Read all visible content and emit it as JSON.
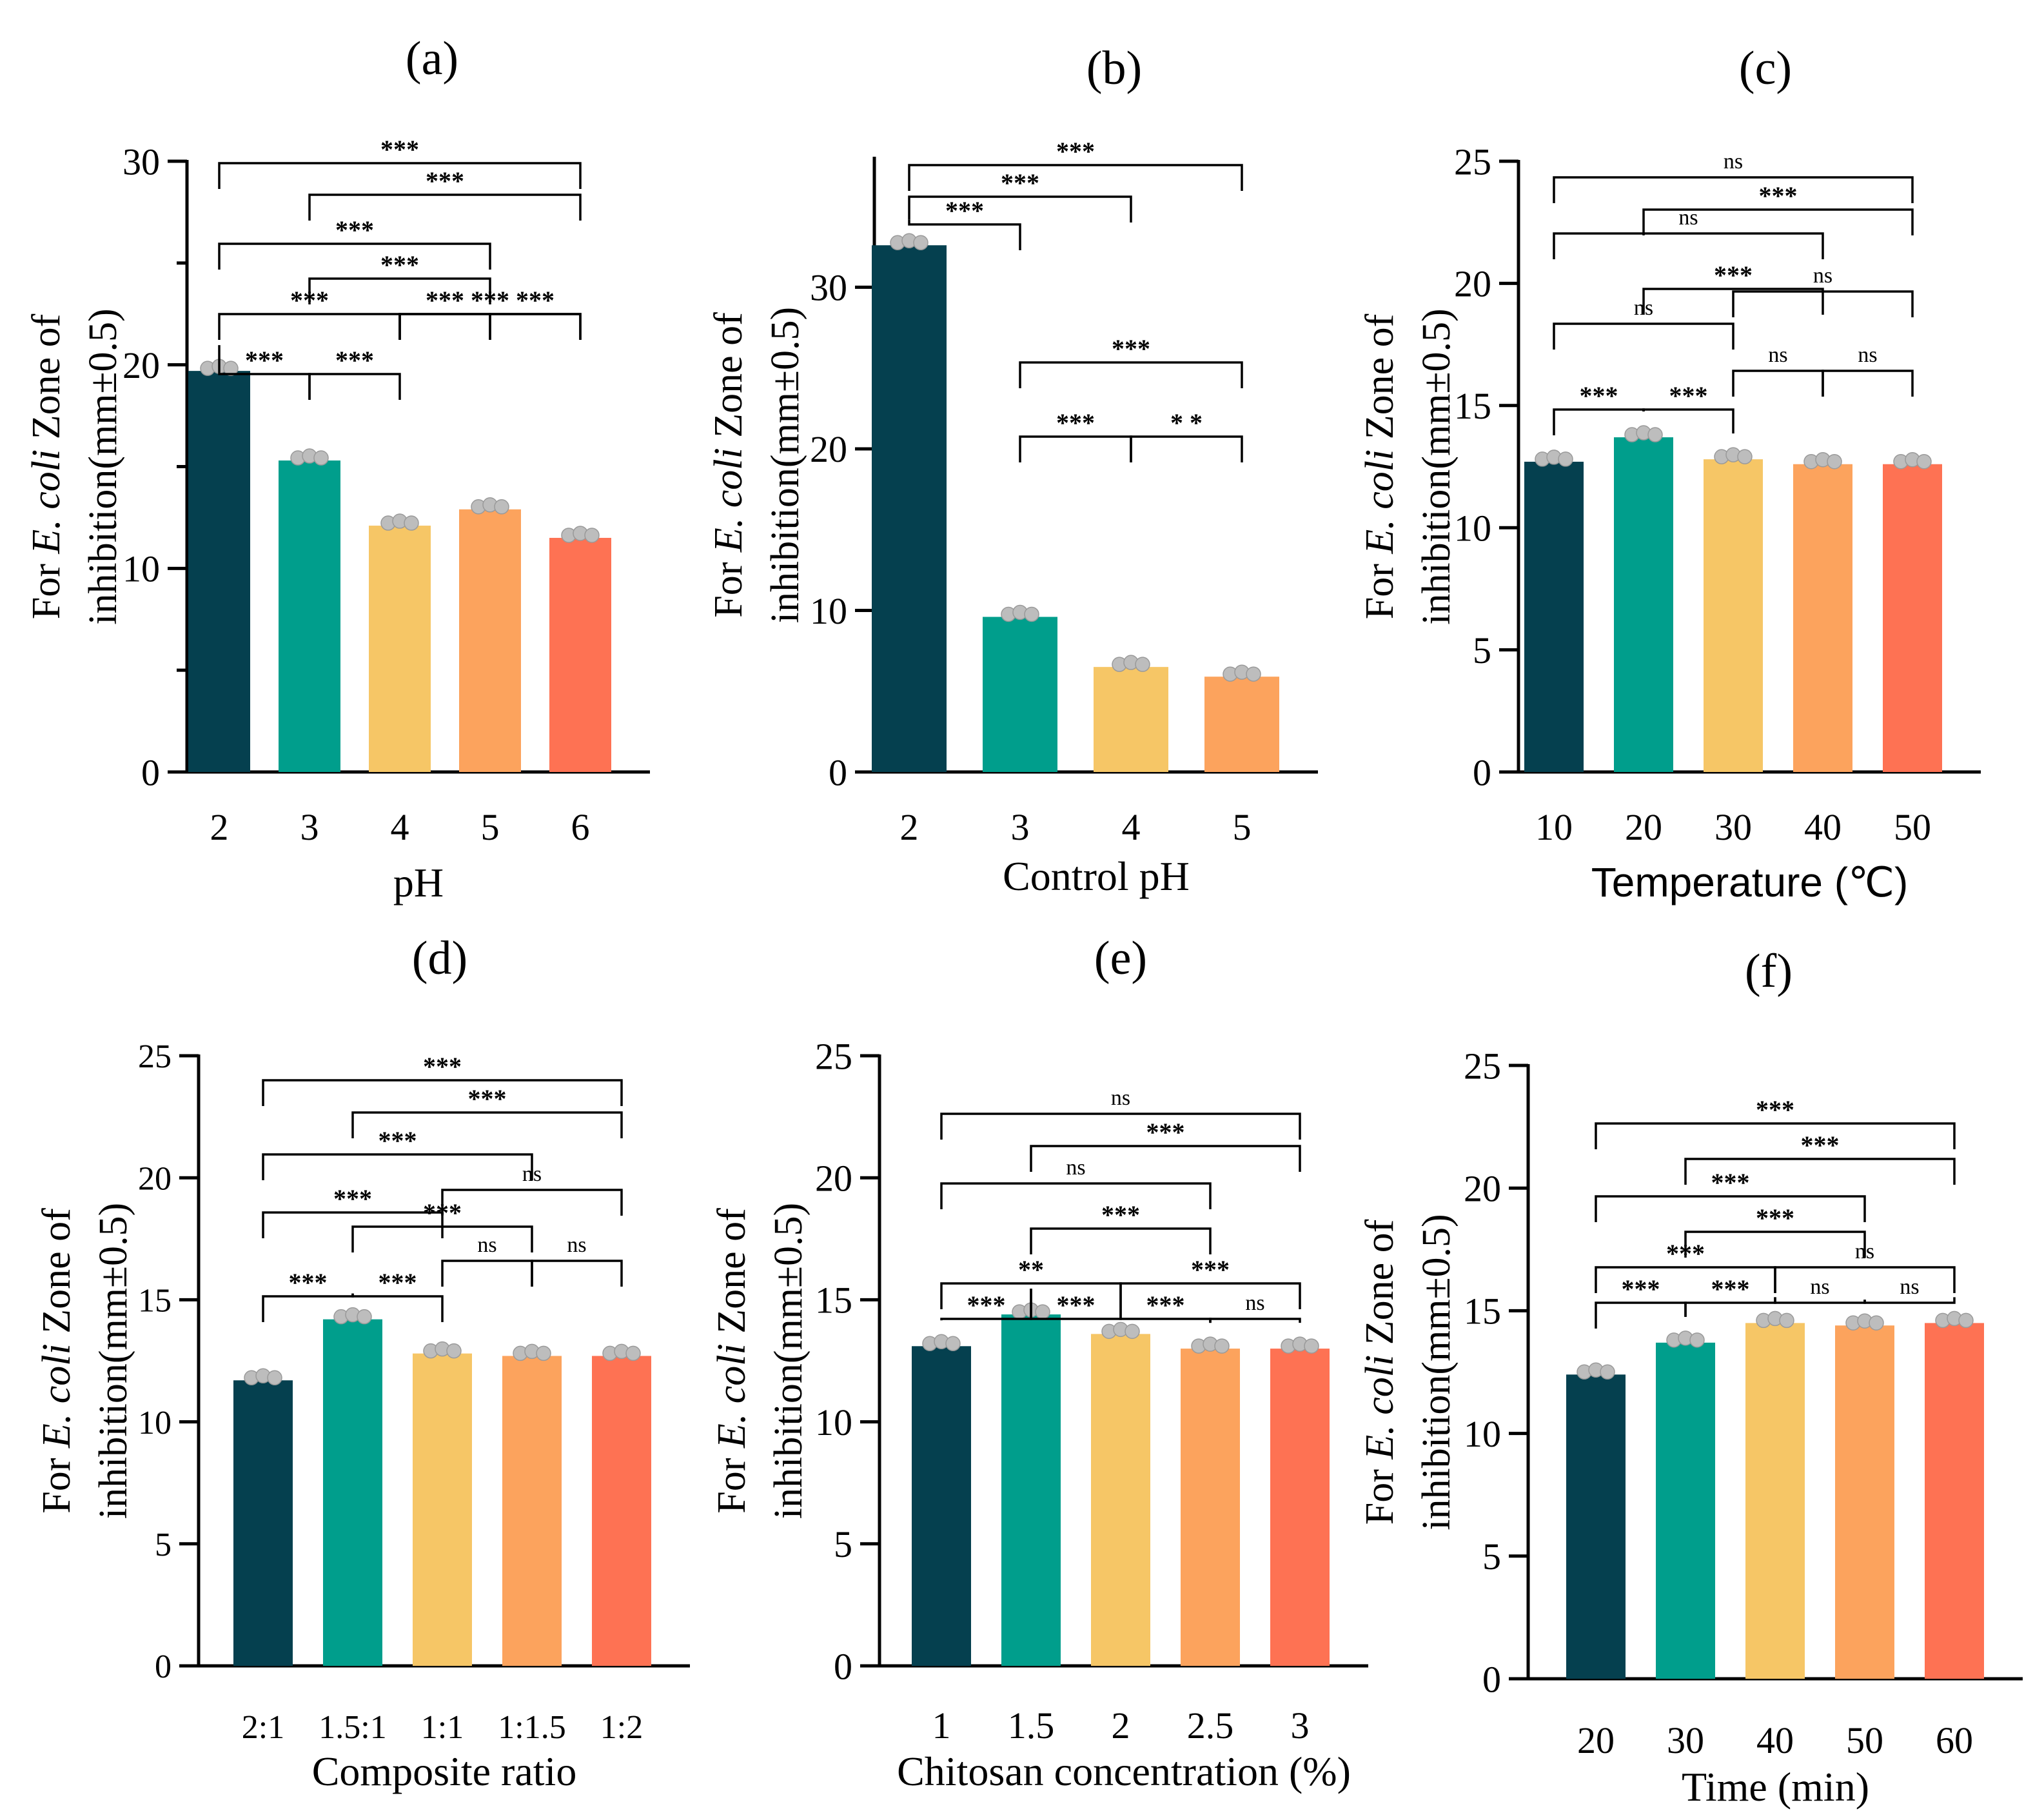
{
  "colors": [
    "#05404f",
    "#009e8c",
    "#f6c666",
    "#fca35d",
    "#fe7253"
  ],
  "point_color": "#bdbdbd",
  "ylabel_prefix": "For ",
  "ylabel_organism": "E. coli",
  "ylabel_suffix": "  Zone of",
  "ylabel_line2": "inhibition(mm±0.5)",
  "chart_data": [
    {
      "type": "bar",
      "panel_label": "(a)",
      "xlabel": "pH",
      "categories": [
        "2",
        "3",
        "4",
        "5",
        "6"
      ],
      "values": [
        19.7,
        15.3,
        12.1,
        12.9,
        11.5
      ],
      "ylim": [
        0,
        30
      ],
      "yticks": [
        0,
        10,
        20,
        30
      ],
      "comparisons": [
        {
          "from": 0,
          "to": 1,
          "label": "***"
        },
        {
          "from": 1,
          "to": 2,
          "label": "***"
        },
        {
          "from": 0,
          "to": 2,
          "label": "***"
        },
        {
          "from": 2,
          "to": 3,
          "label": "***"
        },
        {
          "from": 3,
          "to": 4,
          "label": "***"
        },
        {
          "from": 2,
          "to": 4,
          "label": "***"
        },
        {
          "from": 1,
          "to": 3,
          "label": "***"
        },
        {
          "from": 0,
          "to": 3,
          "label": "***"
        },
        {
          "from": 1,
          "to": 4,
          "label": "***"
        },
        {
          "from": 0,
          "to": 4,
          "label": "***"
        }
      ]
    },
    {
      "type": "bar",
      "panel_label": "(b)",
      "xlabel": "Control pH",
      "categories": [
        "2",
        "3",
        "4",
        "5"
      ],
      "values": [
        32.6,
        9.6,
        6.5,
        5.9
      ],
      "ylim": [
        0,
        38
      ],
      "yticks": [
        0,
        10,
        20,
        30
      ],
      "comparisons": [
        {
          "from": 1,
          "to": 2,
          "label": "***"
        },
        {
          "from": 2,
          "to": 3,
          "label": "* *"
        },
        {
          "from": 1,
          "to": 3,
          "label": "***"
        },
        {
          "from": 0,
          "to": 1,
          "label": "***"
        },
        {
          "from": 0,
          "to": 2,
          "label": "***"
        },
        {
          "from": 0,
          "to": 3,
          "label": "***"
        }
      ]
    },
    {
      "type": "bar",
      "panel_label": "(c)",
      "xlabel": "Temperature (℃)",
      "categories": [
        "10",
        "20",
        "30",
        "40",
        "50"
      ],
      "values": [
        12.7,
        13.7,
        12.8,
        12.6,
        12.6
      ],
      "ylim": [
        0,
        25
      ],
      "yticks": [
        0,
        5,
        10,
        15,
        20,
        25
      ],
      "comparisons": [
        {
          "from": 0,
          "to": 1,
          "label": "***"
        },
        {
          "from": 1,
          "to": 2,
          "label": "***"
        },
        {
          "from": 2,
          "to": 3,
          "label": "ns"
        },
        {
          "from": 3,
          "to": 4,
          "label": "ns"
        },
        {
          "from": 0,
          "to": 2,
          "label": "ns"
        },
        {
          "from": 2,
          "to": 4,
          "label": "ns"
        },
        {
          "from": 1,
          "to": 3,
          "label": "***"
        },
        {
          "from": 0,
          "to": 3,
          "label": "ns"
        },
        {
          "from": 1,
          "to": 4,
          "label": "***"
        },
        {
          "from": 0,
          "to": 4,
          "label": "ns"
        }
      ]
    },
    {
      "type": "bar",
      "panel_label": "(d)",
      "xlabel": "Composite ratio",
      "categories": [
        "2:1",
        "1.5:1",
        "1:1",
        "1:1.5",
        "1:2"
      ],
      "values": [
        11.7,
        14.2,
        12.8,
        12.7,
        12.7
      ],
      "ylim": [
        0,
        25
      ],
      "yticks": [
        0,
        5,
        10,
        15,
        20,
        25
      ],
      "comparisons": [
        {
          "from": 0,
          "to": 1,
          "label": "***"
        },
        {
          "from": 1,
          "to": 2,
          "label": "***"
        },
        {
          "from": 2,
          "to": 3,
          "label": "ns"
        },
        {
          "from": 3,
          "to": 4,
          "label": "ns"
        },
        {
          "from": 0,
          "to": 2,
          "label": "***"
        },
        {
          "from": 1,
          "to": 3,
          "label": "***"
        },
        {
          "from": 2,
          "to": 4,
          "label": "ns"
        },
        {
          "from": 0,
          "to": 3,
          "label": "***"
        },
        {
          "from": 1,
          "to": 4,
          "label": "***"
        },
        {
          "from": 0,
          "to": 4,
          "label": "***"
        }
      ]
    },
    {
      "type": "bar",
      "panel_label": "(e)",
      "xlabel": "Chitosan concentration (%)",
      "categories": [
        "1",
        "1.5",
        "2",
        "2.5",
        "3"
      ],
      "values": [
        13.1,
        14.4,
        13.6,
        13.0,
        13.0
      ],
      "ylim": [
        0,
        25
      ],
      "yticks": [
        0,
        5,
        10,
        15,
        20,
        25
      ],
      "comparisons": [
        {
          "from": 0,
          "to": 1,
          "label": "***"
        },
        {
          "from": 1,
          "to": 2,
          "label": "***"
        },
        {
          "from": 2,
          "to": 3,
          "label": "***"
        },
        {
          "from": 3,
          "to": 4,
          "label": "ns"
        },
        {
          "from": 0,
          "to": 2,
          "label": "**"
        },
        {
          "from": 2,
          "to": 4,
          "label": "***"
        },
        {
          "from": 1,
          "to": 3,
          "label": "***"
        },
        {
          "from": 0,
          "to": 3,
          "label": "ns"
        },
        {
          "from": 1,
          "to": 4,
          "label": "***"
        },
        {
          "from": 0,
          "to": 4,
          "label": "ns"
        }
      ]
    },
    {
      "type": "bar",
      "panel_label": "(f)",
      "xlabel": "Time (min)",
      "categories": [
        "20",
        "30",
        "40",
        "50",
        "60"
      ],
      "values": [
        12.4,
        13.7,
        14.5,
        14.4,
        14.5
      ],
      "ylim": [
        0,
        25
      ],
      "yticks": [
        0,
        5,
        10,
        15,
        20,
        25
      ],
      "comparisons": [
        {
          "from": 0,
          "to": 1,
          "label": "***"
        },
        {
          "from": 1,
          "to": 2,
          "label": "***"
        },
        {
          "from": 2,
          "to": 3,
          "label": "ns"
        },
        {
          "from": 3,
          "to": 4,
          "label": "ns"
        },
        {
          "from": 0,
          "to": 2,
          "label": "***"
        },
        {
          "from": 2,
          "to": 4,
          "label": "ns"
        },
        {
          "from": 1,
          "to": 3,
          "label": "***"
        },
        {
          "from": 0,
          "to": 3,
          "label": "***"
        },
        {
          "from": 1,
          "to": 4,
          "label": "***"
        },
        {
          "from": 0,
          "to": 4,
          "label": "***"
        }
      ]
    }
  ]
}
